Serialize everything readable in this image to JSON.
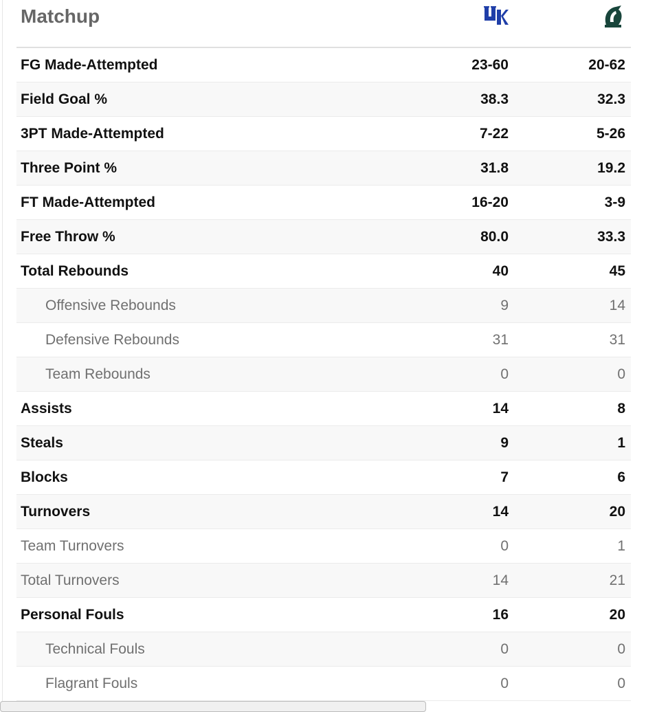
{
  "header": {
    "title": "Matchup"
  },
  "table": {
    "rows": [
      {
        "label": "FG Made-Attempted",
        "level": "main",
        "values": [
          "23-60",
          "20-62"
        ]
      },
      {
        "label": "Field Goal %",
        "level": "main",
        "values": [
          "38.3",
          "32.3"
        ]
      },
      {
        "label": "3PT Made-Attempted",
        "level": "main",
        "values": [
          "7-22",
          "5-26"
        ]
      },
      {
        "label": "Three Point %",
        "level": "main",
        "values": [
          "31.8",
          "19.2"
        ]
      },
      {
        "label": "FT Made-Attempted",
        "level": "main",
        "values": [
          "16-20",
          "3-9"
        ]
      },
      {
        "label": "Free Throw %",
        "level": "main",
        "values": [
          "80.0",
          "33.3"
        ]
      },
      {
        "label": "Total Rebounds",
        "level": "main",
        "values": [
          "40",
          "45"
        ]
      },
      {
        "label": "Offensive Rebounds",
        "level": "indent",
        "values": [
          "9",
          "14"
        ]
      },
      {
        "label": "Defensive Rebounds",
        "level": "indent",
        "values": [
          "31",
          "31"
        ]
      },
      {
        "label": "Team Rebounds",
        "level": "indent",
        "values": [
          "0",
          "0"
        ]
      },
      {
        "label": "Assists",
        "level": "main",
        "values": [
          "14",
          "8"
        ]
      },
      {
        "label": "Steals",
        "level": "main",
        "values": [
          "9",
          "1"
        ]
      },
      {
        "label": "Blocks",
        "level": "main",
        "values": [
          "7",
          "6"
        ]
      },
      {
        "label": "Turnovers",
        "level": "main",
        "values": [
          "14",
          "20"
        ]
      },
      {
        "label": "Team Turnovers",
        "level": "plain",
        "values": [
          "0",
          "1"
        ]
      },
      {
        "label": "Total Turnovers",
        "level": "plain",
        "values": [
          "14",
          "21"
        ]
      },
      {
        "label": "Personal Fouls",
        "level": "main",
        "values": [
          "16",
          "20"
        ]
      },
      {
        "label": "Technical Fouls",
        "level": "indent",
        "values": [
          "0",
          "0"
        ]
      },
      {
        "label": "Flagrant Fouls",
        "level": "indent",
        "values": [
          "0",
          "0"
        ]
      }
    ]
  }
}
